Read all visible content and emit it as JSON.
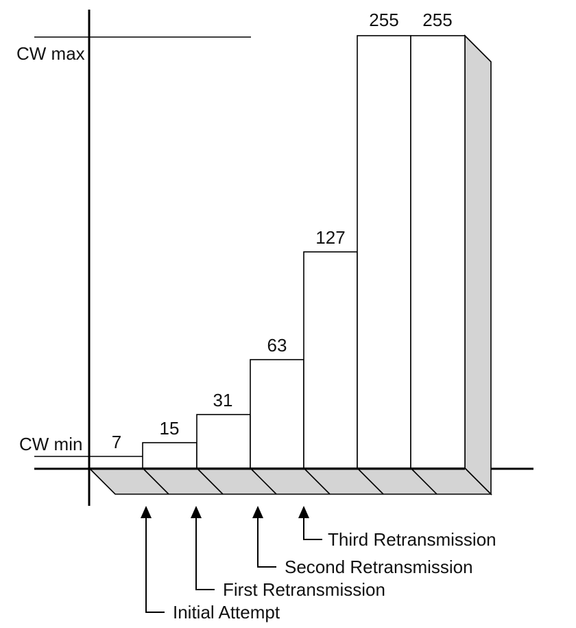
{
  "axis_labels": {
    "cw_max": "CW max",
    "cw_min": "CW min"
  },
  "bar_values": [
    "7",
    "15",
    "31",
    "63",
    "127",
    "255",
    "255"
  ],
  "callouts": [
    "Initial Attempt",
    "First Retransmission",
    "Second Retransmission",
    "Third Retransmission"
  ],
  "colors": {
    "side_shade": "#d4d4d4",
    "stroke": "#000000",
    "background": "#ffffff"
  }
}
